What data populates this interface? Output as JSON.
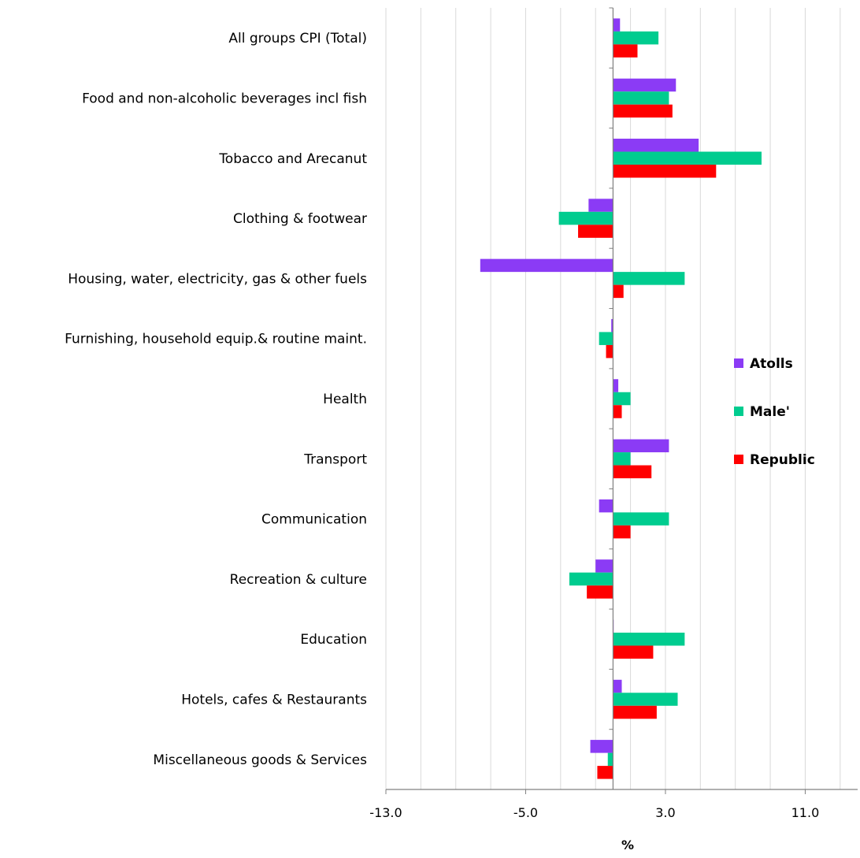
{
  "chart_data": {
    "type": "bar",
    "orientation": "horizontal",
    "categories": [
      "All groups CPI (Total)",
      "Food and non-alcoholic beverages incl fish",
      "Tobacco and Arecanut",
      "Clothing & footwear",
      "Housing, water, electricity, gas & other fuels",
      "Furnishing, household equip.& routine maint.",
      "Health",
      "Transport",
      "Communication",
      "Recreation & culture",
      "Education",
      "Hotels, cafes & Restaurants",
      "Miscellaneous goods & Services"
    ],
    "series": [
      {
        "name": "Atolls",
        "color": "#8B3BF5",
        "values": [
          0.4,
          3.6,
          4.9,
          -1.4,
          -7.6,
          -0.1,
          0.3,
          3.2,
          -0.8,
          -1.0,
          0.0,
          0.5,
          -1.3
        ]
      },
      {
        "name": "Male'",
        "color": "#00CC8F",
        "values": [
          2.6,
          3.2,
          8.5,
          -3.1,
          4.1,
          -0.8,
          1.0,
          1.0,
          3.2,
          -2.5,
          4.1,
          3.7,
          -0.3
        ]
      },
      {
        "name": "Republic",
        "color": "#FF0000",
        "values": [
          1.4,
          3.4,
          5.9,
          -2.0,
          0.6,
          -0.4,
          0.5,
          2.2,
          1.0,
          -1.5,
          2.3,
          2.5,
          -0.9
        ]
      }
    ],
    "xlabel": "%",
    "xticks": [
      -13.0,
      -5.0,
      3.0,
      11.0
    ],
    "xtick_labels": [
      "-13.0",
      "-5.0",
      "3.0",
      "11.0"
    ],
    "xlim": [
      -13.0,
      14.0
    ],
    "grid": "vertical",
    "legend": "right"
  }
}
